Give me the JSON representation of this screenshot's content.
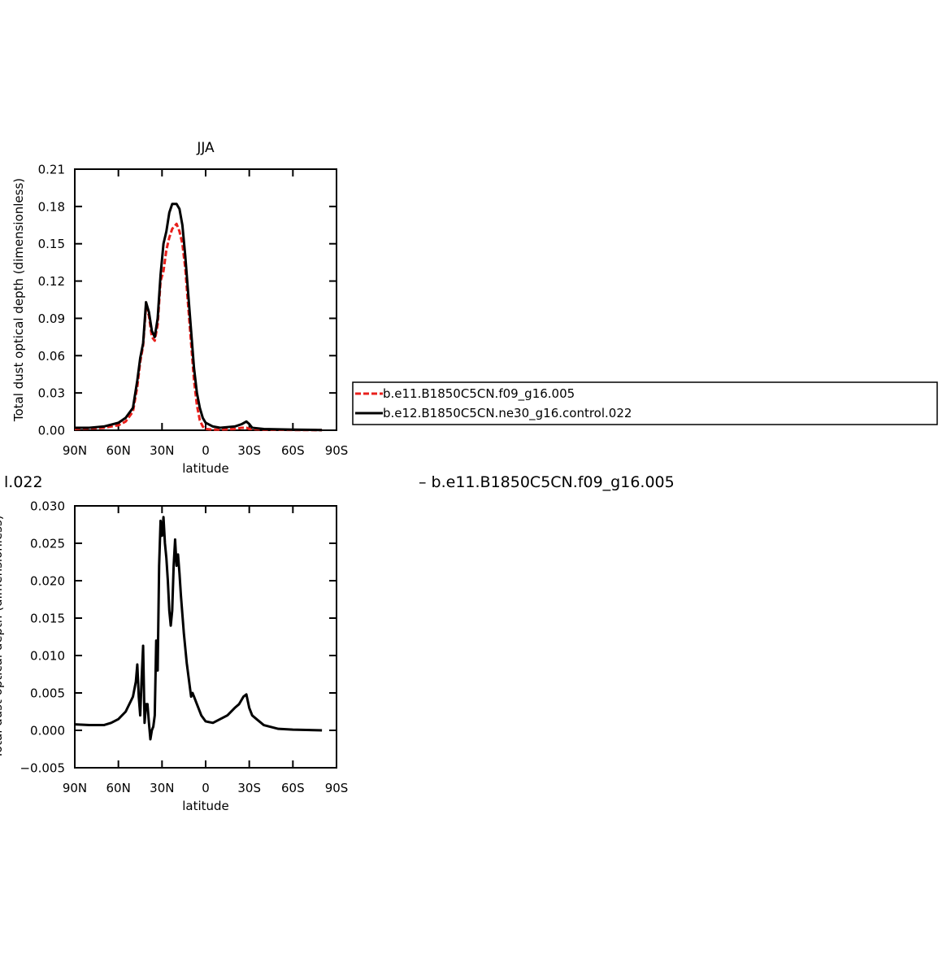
{
  "chart_data": [
    {
      "type": "line",
      "title": "JJA",
      "y_label": "Total dust optical depth (dimensionless)",
      "x_label": "latitude",
      "xlim": [
        90,
        -90
      ],
      "xticks": [
        {
          "value": 90,
          "label": "90N"
        },
        {
          "value": 60,
          "label": "60N"
        },
        {
          "value": 30,
          "label": "30N"
        },
        0,
        {
          "value": -30,
          "label": "30S"
        },
        {
          "value": -60,
          "label": "60S"
        },
        {
          "value": -90,
          "label": "90S"
        }
      ],
      "ylim": [
        0,
        0.21
      ],
      "yticks": [
        {
          "value": 0,
          "label": "0.00"
        },
        0.03,
        0.06,
        0.09,
        0.12,
        0.15,
        0.18,
        0.21
      ],
      "x": [
        90,
        80,
        70,
        60,
        55,
        50,
        47,
        45,
        43,
        41,
        39,
        37,
        35,
        33,
        31,
        29,
        27,
        25,
        23,
        20,
        18,
        16,
        14,
        12,
        10,
        8,
        6,
        4,
        2,
        0,
        -5,
        -10,
        -20,
        -25,
        -28,
        -30,
        -32,
        -40,
        -60,
        -80
      ],
      "series": [
        {
          "name": "b.e11.B1850C5CN.f09_g16.005",
          "color": "#e8201c",
          "line_style": "dashed",
          "values": [
            0.001,
            0.0015,
            0.002,
            0.004,
            0.007,
            0.015,
            0.035,
            0.055,
            0.068,
            0.1,
            0.092,
            0.075,
            0.072,
            0.085,
            0.12,
            0.128,
            0.145,
            0.155,
            0.162,
            0.166,
            0.16,
            0.15,
            0.13,
            0.1,
            0.07,
            0.04,
            0.02,
            0.008,
            0.003,
            0.001,
            0.0005,
            0.0005,
            0.001,
            0.002,
            0.002,
            0.001,
            0.001,
            0.0005,
            0.0002,
            0.0001
          ]
        },
        {
          "name": "b.e12.B1850C5CN.ne30_g16.control.022",
          "color": "#000000",
          "line_style": "solid",
          "values": [
            0.002,
            0.002,
            0.003,
            0.006,
            0.01,
            0.018,
            0.04,
            0.058,
            0.07,
            0.103,
            0.095,
            0.08,
            0.075,
            0.09,
            0.125,
            0.15,
            0.16,
            0.175,
            0.182,
            0.182,
            0.178,
            0.165,
            0.14,
            0.11,
            0.08,
            0.05,
            0.03,
            0.018,
            0.01,
            0.006,
            0.003,
            0.002,
            0.003,
            0.005,
            0.007,
            0.005,
            0.002,
            0.001,
            0.0005,
            0.0002
          ]
        }
      ]
    },
    {
      "type": "line",
      "title_fragments": [
        "l.022",
        "– b.e11.B1850C5CN.f09_g16.005"
      ],
      "y_label": "Total dust optical depth (dimensionless)",
      "x_label": "latitude",
      "xlim": [
        90,
        -90
      ],
      "xticks": [
        {
          "value": 90,
          "label": "90N"
        },
        {
          "value": 60,
          "label": "60N"
        },
        {
          "value": 30,
          "label": "30N"
        },
        0,
        {
          "value": -30,
          "label": "30S"
        },
        {
          "value": -60,
          "label": "60S"
        },
        {
          "value": -90,
          "label": "90S"
        }
      ],
      "ylim": [
        -0.005,
        0.03
      ],
      "yticks": [
        {
          "value": -0.005,
          "label": "−0.005"
        },
        {
          "value": 0,
          "label": "0.000"
        },
        {
          "value": 0.005,
          "label": "0.005"
        },
        {
          "value": 0.01,
          "label": "0.010"
        },
        {
          "value": 0.015,
          "label": "0.015"
        },
        {
          "value": 0.02,
          "label": "0.020"
        },
        {
          "value": 0.025,
          "label": "0.025"
        },
        {
          "value": 0.03,
          "label": "0.030"
        }
      ],
      "x": [
        90,
        80,
        70,
        65,
        60,
        55,
        50,
        48,
        47,
        46,
        45,
        44,
        43,
        42,
        41,
        40,
        39,
        38,
        37,
        36,
        35,
        34,
        33,
        32,
        31,
        30,
        29,
        28,
        27,
        26,
        25,
        24,
        23,
        22,
        21,
        20,
        19,
        18,
        17,
        15,
        13,
        11,
        10,
        9,
        8,
        6,
        3,
        0,
        -5,
        -10,
        -15,
        -20,
        -23,
        -26,
        -28,
        -30,
        -32,
        -35,
        -40,
        -50,
        -60,
        -80
      ],
      "series": [
        {
          "color": "#000000",
          "line_style": "solid",
          "values": [
            0.0008,
            0.0007,
            0.0007,
            0.001,
            0.0015,
            0.0025,
            0.0045,
            0.0065,
            0.0088,
            0.0045,
            0.002,
            0.007,
            0.0113,
            0.001,
            0.0035,
            0.0035,
            0.001,
            -0.0012,
            0,
            0.0005,
            0.002,
            0.012,
            0.008,
            0.022,
            0.028,
            0.026,
            0.0285,
            0.025,
            0.023,
            0.02,
            0.016,
            0.014,
            0.016,
            0.022,
            0.0255,
            0.022,
            0.0235,
            0.021,
            0.018,
            0.013,
            0.009,
            0.006,
            0.0045,
            0.005,
            0.0045,
            0.0035,
            0.002,
            0.0012,
            0.001,
            0.0015,
            0.002,
            0.003,
            0.0035,
            0.0045,
            0.0048,
            0.003,
            0.002,
            0.0015,
            0.0007,
            0.0002,
            0.0001,
            0
          ]
        }
      ]
    }
  ]
}
